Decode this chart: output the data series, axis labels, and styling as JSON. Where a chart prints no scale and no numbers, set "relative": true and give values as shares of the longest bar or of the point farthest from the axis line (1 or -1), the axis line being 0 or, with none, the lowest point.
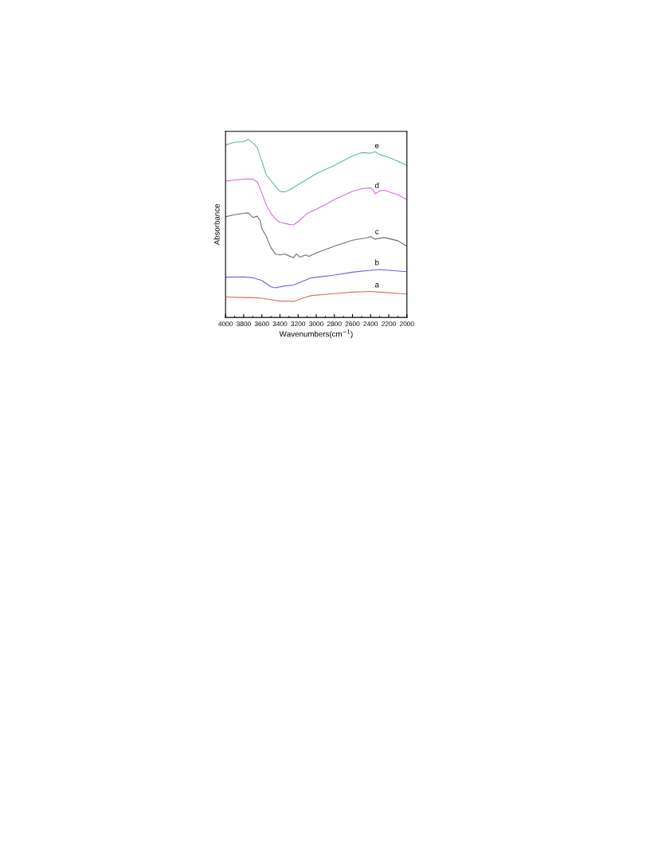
{
  "chart_data": {
    "type": "line",
    "relative": true,
    "xlabel": "Wavenumbers(cm$^{−1}$)",
    "ylabel": "Absorbance",
    "xlim": [
      4000,
      2000
    ],
    "xticks": [
      4000,
      3800,
      3600,
      3400,
      3200,
      3000,
      2800,
      2600,
      2400,
      2200,
      2000
    ],
    "grid": false,
    "legend": false,
    "marker": "none",
    "line_style": "solid",
    "series": [
      {
        "name": "a",
        "color": "#e86868",
        "x": [
          4000,
          3800,
          3700,
          3600,
          3500,
          3400,
          3300,
          3250,
          3150,
          3050,
          2800,
          2600,
          2400,
          2300,
          2000
        ],
        "values": [
          0.115,
          0.112,
          0.111,
          0.108,
          0.1,
          0.092,
          0.092,
          0.089,
          0.108,
          0.123,
          0.134,
          0.142,
          0.146,
          0.142,
          0.131
        ]
      },
      {
        "name": "b",
        "color": "#6464e0",
        "x": [
          4000,
          3800,
          3700,
          3600,
          3500,
          3450,
          3350,
          3250,
          3150,
          3050,
          2800,
          2600,
          2400,
          2300,
          2000
        ],
        "values": [
          0.226,
          0.228,
          0.223,
          0.208,
          0.172,
          0.166,
          0.177,
          0.182,
          0.203,
          0.223,
          0.238,
          0.254,
          0.265,
          0.269,
          0.257
        ]
      },
      {
        "name": "c",
        "color": "#707070",
        "x": [
          4000,
          3900,
          3800,
          3750,
          3700,
          3650,
          3620,
          3600,
          3550,
          3500,
          3450,
          3400,
          3350,
          3300,
          3250,
          3220,
          3180,
          3120,
          3080,
          3000,
          2800,
          2600,
          2500,
          2450,
          2400,
          2350,
          2250,
          2100,
          2000
        ],
        "values": [
          0.566,
          0.577,
          0.585,
          0.588,
          0.562,
          0.569,
          0.546,
          0.5,
          0.454,
          0.392,
          0.357,
          0.351,
          0.357,
          0.346,
          0.335,
          0.357,
          0.338,
          0.351,
          0.343,
          0.362,
          0.4,
          0.434,
          0.443,
          0.446,
          0.454,
          0.44,
          0.449,
          0.431,
          0.4
        ]
      },
      {
        "name": "d",
        "color": "#e068e0",
        "x": [
          4000,
          3900,
          3800,
          3700,
          3650,
          3600,
          3550,
          3500,
          3450,
          3400,
          3300,
          3250,
          3200,
          3100,
          3000,
          2900,
          2800,
          2600,
          2500,
          2400,
          2370,
          2350,
          2300,
          2250,
          2100,
          2000
        ],
        "values": [
          0.766,
          0.772,
          0.777,
          0.777,
          0.762,
          0.7,
          0.631,
          0.585,
          0.554,
          0.535,
          0.523,
          0.52,
          0.538,
          0.585,
          0.608,
          0.634,
          0.662,
          0.708,
          0.723,
          0.728,
          0.715,
          0.695,
          0.711,
          0.715,
          0.689,
          0.662
        ]
      },
      {
        "name": "e",
        "color": "#5fb8a8",
        "x": [
          4000,
          3900,
          3800,
          3750,
          3700,
          3650,
          3600,
          3550,
          3500,
          3450,
          3400,
          3350,
          3300,
          3200,
          3100,
          3000,
          2800,
          2600,
          2500,
          2400,
          2350,
          2300,
          2200,
          2100,
          2000
        ],
        "values": [
          0.969,
          0.985,
          0.988,
          1.0,
          0.982,
          0.954,
          0.877,
          0.8,
          0.769,
          0.738,
          0.708,
          0.705,
          0.715,
          0.746,
          0.777,
          0.808,
          0.854,
          0.908,
          0.926,
          0.923,
          0.931,
          0.915,
          0.9,
          0.877,
          0.854
        ]
      }
    ]
  }
}
